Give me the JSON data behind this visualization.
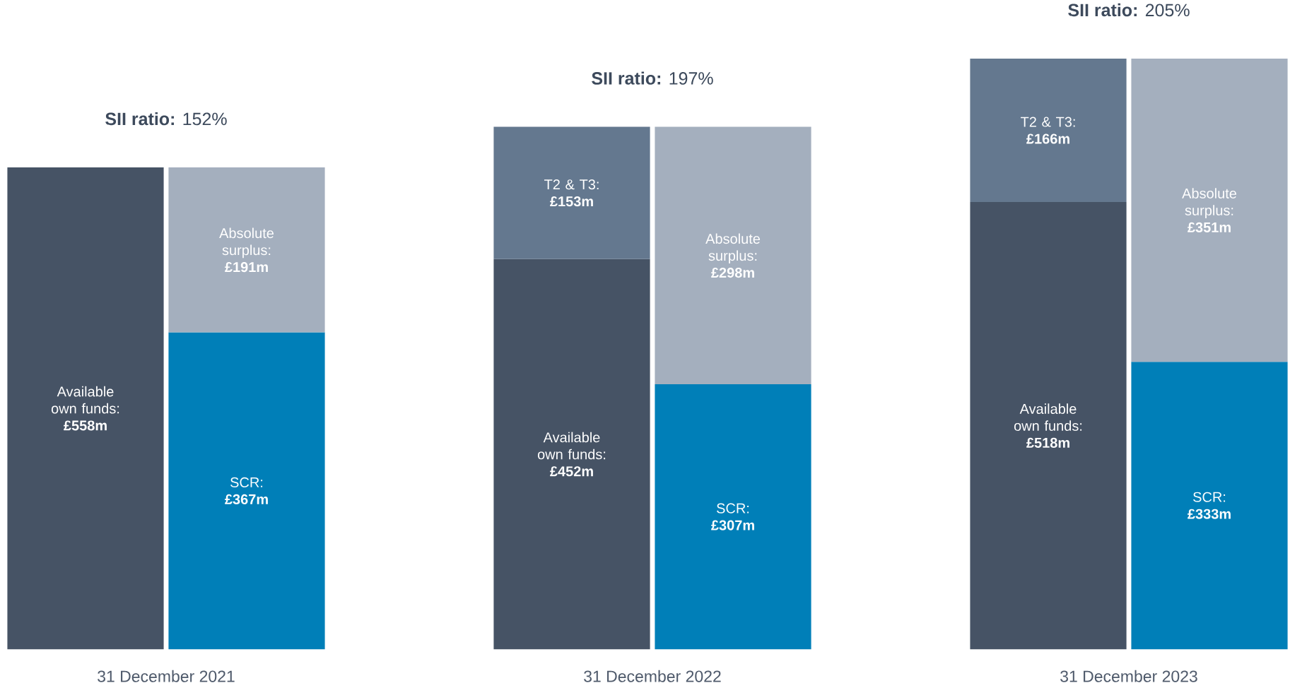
{
  "chart_data": [
    {
      "type": "bar",
      "stacked": true,
      "title": "**SII ratio:** 152%",
      "xlabel": "31 December 2021",
      "categories": [
        null,
        null
      ],
      "tick_labels": false,
      "series": [
        {
          "colors": [
            "#465365",
            "#007fb8"
          ],
          "values": [
            558,
            367
          ],
          "value_labels": [
            "Available own funds: **£558m**",
            "SCR: **£367m**"
          ]
        },
        {
          "colors": [
            "#64788f",
            "#a4afbe"
          ],
          "values": [
            null,
            191
          ],
          "value_labels": [
            null,
            "Absolute surplus: **£191m**"
          ]
        }
      ]
    },
    {
      "type": "bar",
      "stacked": true,
      "title": "**SII ratio:** 197%",
      "xlabel": "31 December 2022",
      "categories": [
        null,
        null
      ],
      "tick_labels": false,
      "series": [
        {
          "colors": [
            "#465365",
            "#007fb8"
          ],
          "values": [
            452,
            307
          ],
          "value_labels": [
            "Available own funds: **£452m**",
            "SCR: **£307m**"
          ]
        },
        {
          "colors": [
            "#64788f",
            "#a4afbe"
          ],
          "values": [
            153,
            298
          ],
          "value_labels": [
            "T2 & T3: **£153m**",
            "Absolute surplus: **£298m**"
          ]
        }
      ]
    },
    {
      "type": "bar",
      "stacked": true,
      "title": "**SII ratio:** 205%",
      "xlabel": "31 December 2023",
      "categories": [
        null,
        null
      ],
      "tick_labels": false,
      "series": [
        {
          "colors": [
            "#465365",
            "#007fb8"
          ],
          "values": [
            518,
            333
          ],
          "value_labels": [
            "Available own funds: **£518m**",
            "SCR: **£333m**"
          ]
        },
        {
          "colors": [
            "#64788f",
            "#a4afbe"
          ],
          "values": [
            166,
            351
          ],
          "value_labels": [
            "T2 & T3: **£166m**",
            "Absolute surplus: **£351m**"
          ]
        }
      ]
    }
  ]
}
